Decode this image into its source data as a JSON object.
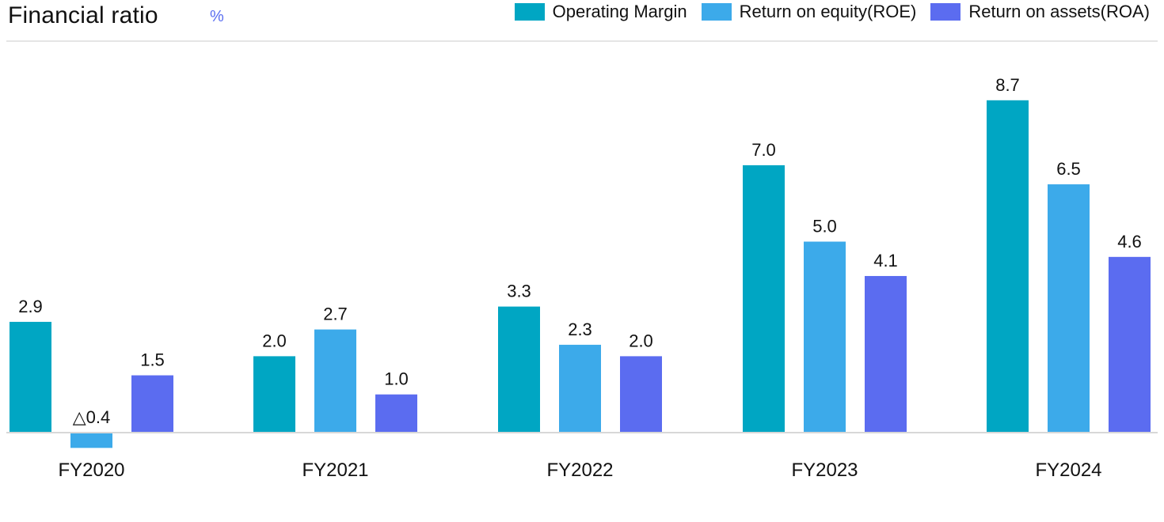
{
  "header": {
    "title": "Financial ratio",
    "unit": "%"
  },
  "colors": {
    "operating_margin": "#00a6c3",
    "roe": "#3caaea",
    "roa": "#5b6cf0",
    "axis": "#d7d7d7",
    "rule": "#e5e5e5"
  },
  "chart_data": {
    "type": "bar",
    "title": "Financial ratio",
    "unit": "%",
    "categories": [
      "FY2020",
      "FY2021",
      "FY2022",
      "FY2023",
      "FY2024"
    ],
    "series": [
      {
        "name": "Operating Margin",
        "values": [
          2.9,
          2.0,
          3.3,
          7.0,
          8.7
        ],
        "labels": [
          "2.9",
          "2.0",
          "3.3",
          "7.0",
          "8.7"
        ]
      },
      {
        "name": "Return on equity(ROE)",
        "values": [
          -0.4,
          2.7,
          2.3,
          5.0,
          6.5
        ],
        "labels": [
          "△0.4",
          "2.7",
          "2.3",
          "5.0",
          "6.5"
        ]
      },
      {
        "name": "Return on assets(ROA)",
        "values": [
          1.5,
          1.0,
          2.0,
          4.1,
          4.6
        ],
        "labels": [
          "1.5",
          "1.0",
          "2.0",
          "4.1",
          "4.6"
        ]
      }
    ],
    "legend_position": "top-right",
    "grid": false
  }
}
